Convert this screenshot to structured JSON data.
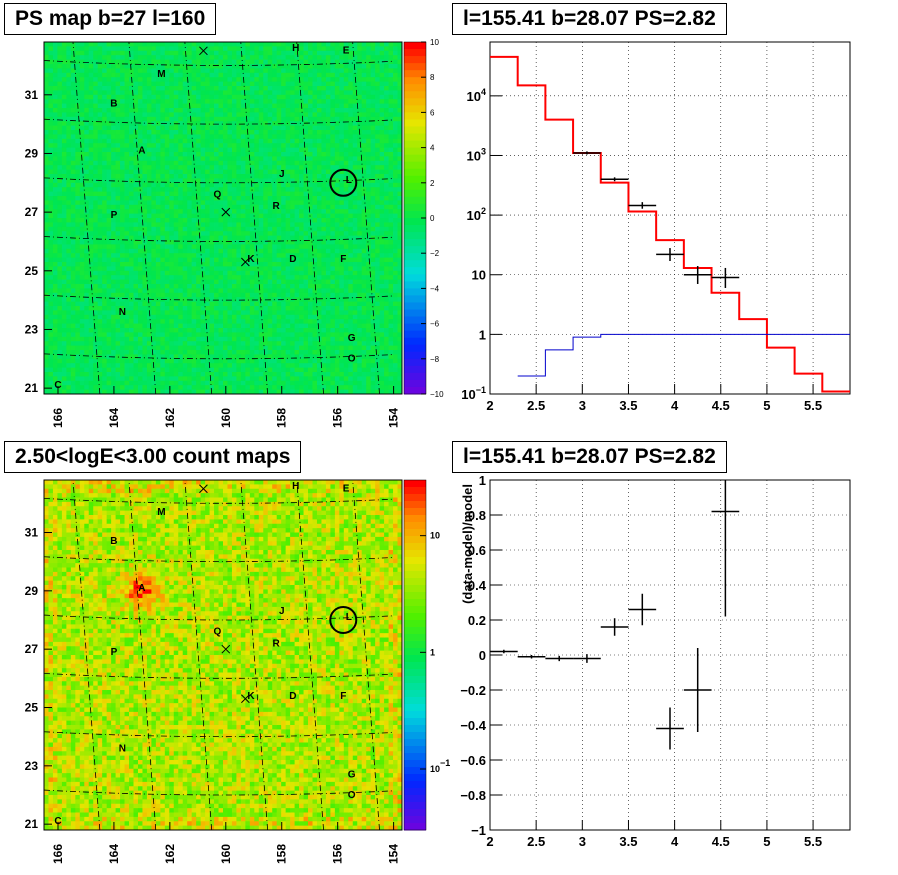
{
  "chart_data": [
    {
      "panel": "ps-map",
      "type": "heatmap",
      "title": "PS map b=27 l=160",
      "xticks": [
        "166",
        "164",
        "162",
        "160",
        "158",
        "156",
        "154"
      ],
      "yticks": [
        "21",
        "23",
        "25",
        "27",
        "29",
        "31"
      ],
      "xlim": [
        166.5,
        153.7
      ],
      "ylim": [
        20.8,
        32.8
      ],
      "colorbar": {
        "scale": "linear",
        "range": [
          -10,
          10
        ],
        "ticks": [
          "10",
          "8",
          "6",
          "4",
          "2",
          "0",
          "−2",
          "−4",
          "−6",
          "−8",
          "−10"
        ]
      },
      "background_value": 0.5,
      "sources": [
        {
          "label": "H",
          "l": 157.5,
          "b": 32.5
        },
        {
          "label": "E",
          "l": 155.7,
          "b": 32.4
        },
        {
          "label": "M",
          "l": 162.3,
          "b": 31.6
        },
        {
          "label": "B",
          "l": 164.0,
          "b": 30.6
        },
        {
          "label": "A",
          "l": 163.0,
          "b": 29.0
        },
        {
          "label": "J",
          "l": 158.0,
          "b": 28.2
        },
        {
          "label": "L",
          "l": 155.6,
          "b": 28.0
        },
        {
          "label": "Q",
          "l": 160.3,
          "b": 27.5
        },
        {
          "label": "R",
          "l": 158.2,
          "b": 27.1
        },
        {
          "label": "P",
          "l": 164.0,
          "b": 26.8
        },
        {
          "label": "K",
          "l": 159.1,
          "b": 25.3
        },
        {
          "label": "D",
          "l": 157.6,
          "b": 25.3
        },
        {
          "label": "F",
          "l": 155.8,
          "b": 25.3
        },
        {
          "label": "N",
          "l": 163.7,
          "b": 23.5
        },
        {
          "label": "G",
          "l": 155.5,
          "b": 22.6
        },
        {
          "label": "O",
          "l": 155.5,
          "b": 21.9
        },
        {
          "label": "C",
          "l": 166.0,
          "b": 21.0
        }
      ]
    },
    {
      "panel": "spectrum",
      "type": "line",
      "title": "l=155.41 b=28.07 PS=2.82",
      "xlim": [
        2,
        5.9
      ],
      "ylim": [
        0.1,
        80000
      ],
      "yscale": "log",
      "grid": true,
      "xticks": [
        "2",
        "2.5",
        "3",
        "3.5",
        "4",
        "4.5",
        "5",
        "5.5"
      ],
      "yticks": [
        {
          "base": "10",
          "exp": "4",
          "value": 10000
        },
        {
          "base": "10",
          "exp": "3",
          "value": 1000
        },
        {
          "base": "10",
          "exp": "2",
          "value": 100
        },
        {
          "base": "10",
          "exp": "",
          "value": 10
        },
        {
          "base": "1",
          "exp": "",
          "value": 1
        },
        {
          "base": "10",
          "exp": "−1",
          "value": 0.1
        }
      ],
      "series": [
        {
          "role": "model",
          "color": "#ff0000",
          "edges": [
            2,
            2.3,
            2.6,
            2.9,
            3.2,
            3.5,
            3.8,
            4.1,
            4.4,
            4.7,
            5.0,
            5.3,
            5.6,
            5.9
          ],
          "values": [
            45000,
            15000,
            4000,
            1100,
            350,
            115,
            38,
            13,
            5,
            1.8,
            0.6,
            0.22,
            0.11
          ]
        },
        {
          "role": "background",
          "color": "#0000cc",
          "edges": [
            2.3,
            2.6,
            2.9,
            3.2,
            5.9
          ],
          "values": [
            0.2,
            0.55,
            0.9,
            1.0
          ]
        },
        {
          "role": "data",
          "color": "#000000",
          "points": [
            {
              "x": 3.05,
              "xerr": 0.15,
              "y": 1100,
              "ylo": 1040,
              "yhi": 1170
            },
            {
              "x": 3.35,
              "xerr": 0.15,
              "y": 400,
              "ylo": 370,
              "yhi": 430
            },
            {
              "x": 3.65,
              "xerr": 0.15,
              "y": 145,
              "ylo": 128,
              "yhi": 165
            },
            {
              "x": 3.95,
              "xerr": 0.15,
              "y": 22,
              "ylo": 17,
              "yhi": 28
            },
            {
              "x": 4.25,
              "xerr": 0.15,
              "y": 10,
              "ylo": 7,
              "yhi": 14
            },
            {
              "x": 4.55,
              "xerr": 0.15,
              "y": 9,
              "ylo": 6,
              "yhi": 13
            }
          ]
        }
      ]
    },
    {
      "panel": "count-map",
      "type": "heatmap",
      "title": "2.50<logE<3.00 count maps",
      "xticks": [
        "166",
        "164",
        "162",
        "160",
        "158",
        "156",
        "154"
      ],
      "yticks": [
        "21",
        "23",
        "25",
        "27",
        "29",
        "31"
      ],
      "xlim": [
        166.5,
        153.7
      ],
      "ylim": [
        20.8,
        32.8
      ],
      "colorbar": {
        "scale": "log",
        "range": [
          0.03,
          30
        ],
        "ticks": [
          {
            "base": "10",
            "exp": "",
            "value": 10
          },
          {
            "base": "1",
            "exp": "",
            "value": 1
          },
          {
            "base": "10",
            "exp": "−1",
            "value": 0.1
          }
        ]
      },
      "background_value": 2.5
    },
    {
      "panel": "residuals",
      "type": "scatter",
      "title": "l=155.41 b=28.07 PS=2.82",
      "ylabel": "(data-model)/model",
      "xlim": [
        2,
        5.9
      ],
      "ylim": [
        -1,
        1
      ],
      "grid": true,
      "xticks": [
        "2",
        "2.5",
        "3",
        "3.5",
        "4",
        "4.5",
        "5",
        "5.5"
      ],
      "yticks": [
        "1",
        "0.8",
        "0.6",
        "0.4",
        "0.2",
        "0",
        "−0.2",
        "−0.4",
        "−0.6",
        "−0.8",
        "−1"
      ],
      "points": [
        {
          "x": 2.15,
          "xerr": 0.15,
          "y": 0.02,
          "yerr": 0.01
        },
        {
          "x": 2.45,
          "xerr": 0.15,
          "y": -0.01,
          "yerr": 0.01
        },
        {
          "x": 2.75,
          "xerr": 0.15,
          "y": -0.02,
          "yerr": 0.015
        },
        {
          "x": 3.05,
          "xerr": 0.15,
          "y": -0.02,
          "yerr": 0.025
        },
        {
          "x": 3.35,
          "xerr": 0.15,
          "y": 0.16,
          "yerr": 0.05
        },
        {
          "x": 3.65,
          "xerr": 0.15,
          "y": 0.26,
          "yerr": 0.09
        },
        {
          "x": 3.95,
          "xerr": 0.15,
          "y": -0.42,
          "yerr": 0.12
        },
        {
          "x": 4.25,
          "xerr": 0.15,
          "y": -0.2,
          "yerr": 0.24
        },
        {
          "x": 4.55,
          "xerr": 0.15,
          "y": 0.82,
          "yerr": 0.6
        }
      ]
    }
  ]
}
